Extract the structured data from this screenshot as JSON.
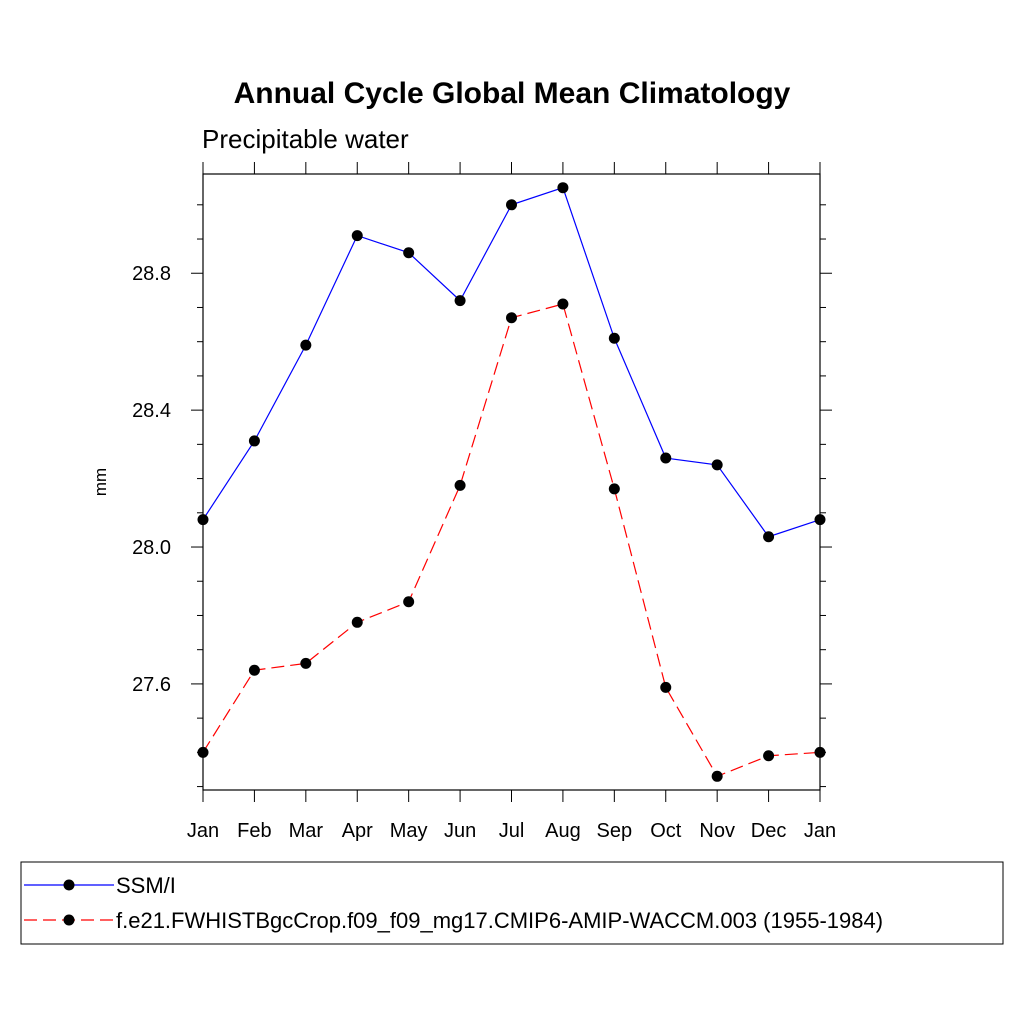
{
  "chart_data": {
    "type": "line",
    "title": "Annual Cycle Global Mean Climatology",
    "subtitle": "Precipitable water",
    "ylabel": "mm",
    "xlabel": "",
    "categories": [
      "Jan",
      "Feb",
      "Mar",
      "Apr",
      "May",
      "Jun",
      "Jul",
      "Aug",
      "Sep",
      "Oct",
      "Nov",
      "Dec",
      "Jan"
    ],
    "ylim": [
      27.29,
      29.09
    ],
    "yticks": [
      27.6,
      28.0,
      28.4,
      28.8
    ],
    "ytick_labels": [
      "27.6",
      "28.0",
      "28.4",
      "28.8"
    ],
    "legend_position": "bottom",
    "series": [
      {
        "name": "SSM/I",
        "color": "#0000ff",
        "dash": "solid",
        "values": [
          28.08,
          28.31,
          28.59,
          28.91,
          28.86,
          28.72,
          29.0,
          29.05,
          28.61,
          28.26,
          28.24,
          28.03,
          28.08
        ]
      },
      {
        "name": "f.e21.FWHISTBgcCrop.f09_f09_mg17.CMIP6-AMIP-WACCM.003 (1955-1984)",
        "color": "#ff0000",
        "dash": "dashed",
        "values": [
          27.4,
          27.64,
          27.66,
          27.78,
          27.84,
          28.18,
          28.67,
          28.71,
          28.17,
          27.59,
          27.33,
          27.39,
          27.4
        ]
      }
    ]
  }
}
